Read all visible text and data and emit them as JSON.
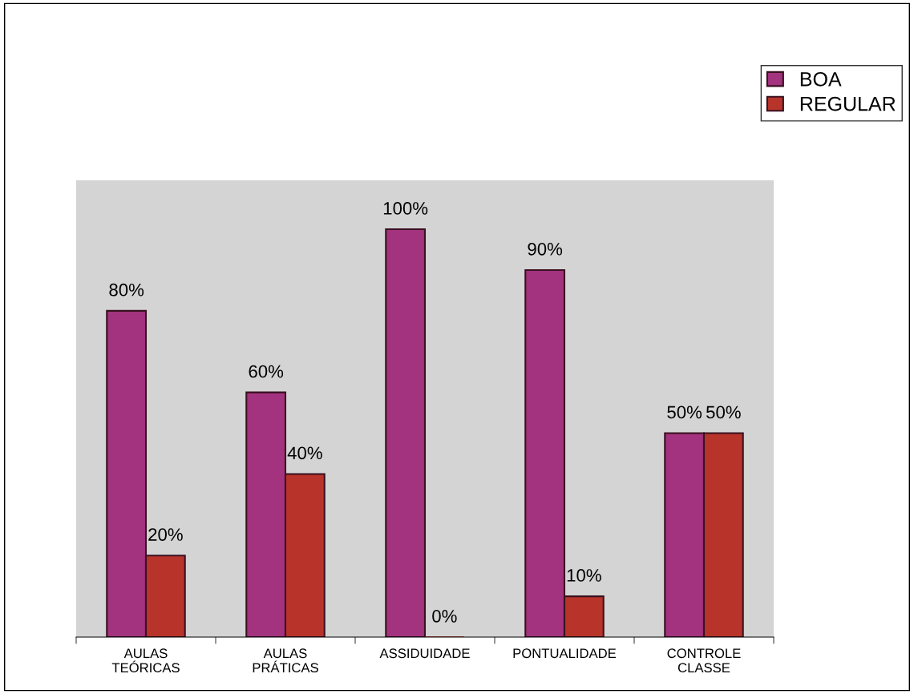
{
  "chart_data": {
    "type": "bar",
    "categories": [
      "AULAS\nTEÓRICAS",
      "AULAS\nPRÁTICAS",
      "ASSIDUIDADE",
      "PONTUALIDADE",
      "CONTROLE\nCLASSE"
    ],
    "series": [
      {
        "name": "BOA",
        "color": "#a3327f",
        "values": [
          80,
          60,
          100,
          90,
          50
        ],
        "value_labels": [
          "80%",
          "60%",
          "100%",
          "90%",
          "50%"
        ]
      },
      {
        "name": "REGULAR",
        "color": "#b8342a",
        "values": [
          20,
          40,
          0,
          10,
          50
        ],
        "value_labels": [
          "20%",
          "40%",
          "0%",
          "10%",
          "50%"
        ]
      }
    ],
    "legend": "top right",
    "grid": false
  }
}
